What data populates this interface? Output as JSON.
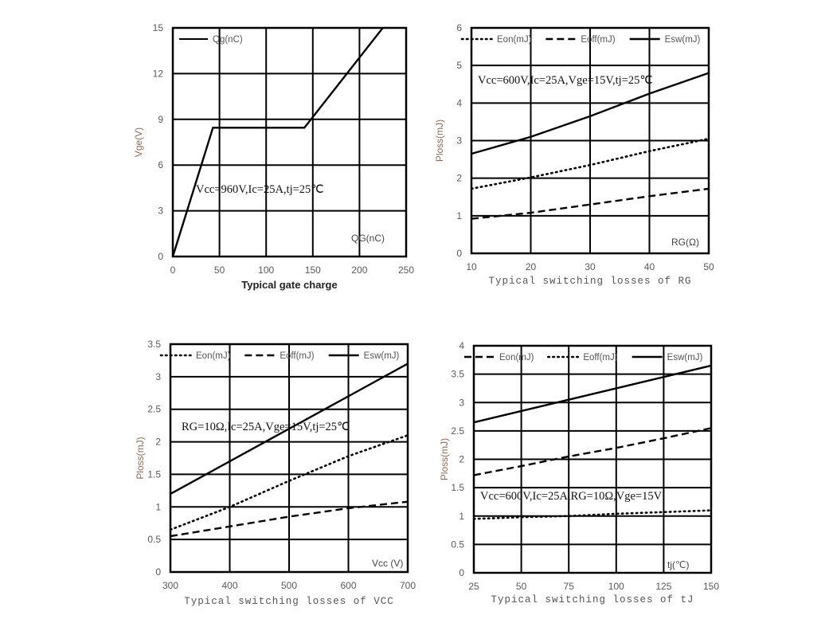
{
  "chart_data": [
    {
      "type": "line",
      "title": "Typical gate charge",
      "xlabel": "QG(nC)",
      "ylabel": "Vge(V)",
      "xlim": [
        0,
        250
      ],
      "ylim": [
        0,
        15
      ],
      "xticks": [
        "0",
        "50",
        "100",
        "150",
        "200",
        "250"
      ],
      "yticks": [
        "0",
        "3",
        "6",
        "9",
        "12",
        "15"
      ],
      "grid": true,
      "annotation": "Vcc=960V,Ic=25A,tj=25℃",
      "legend_position": "top-left",
      "series": [
        {
          "name": "Qg(nC)",
          "style": "solid",
          "x": [
            0,
            43,
            141,
            225
          ],
          "y": [
            0,
            8.45,
            8.45,
            15
          ]
        }
      ]
    },
    {
      "type": "line",
      "title": "Typical switching losses of RG",
      "xlabel": "RG(Ω)",
      "ylabel": "Ploss(mJ)",
      "xlim": [
        10,
        50
      ],
      "ylim": [
        0,
        6
      ],
      "xticks": [
        "10",
        "20",
        "30",
        "40",
        "50"
      ],
      "yticks": [
        "0",
        "1",
        "2",
        "3",
        "4",
        "5",
        "6"
      ],
      "grid": true,
      "annotation": "Vcc=600V,Ic=25A,Vge=15V,tj=25℃",
      "legend_position": "top",
      "series": [
        {
          "name": "Eon(mJ)",
          "style": "dotted",
          "x": [
            10,
            20,
            30,
            40,
            50
          ],
          "y": [
            1.72,
            2.02,
            2.35,
            2.72,
            3.05
          ]
        },
        {
          "name": "Eoff(mJ)",
          "style": "dashed",
          "x": [
            10,
            20,
            30,
            40,
            50
          ],
          "y": [
            0.92,
            1.08,
            1.3,
            1.52,
            1.72
          ]
        },
        {
          "name": "Esw(mJ)",
          "style": "solid",
          "x": [
            10,
            20,
            30,
            40,
            50
          ],
          "y": [
            2.65,
            3.1,
            3.65,
            4.25,
            4.8
          ]
        }
      ]
    },
    {
      "type": "line",
      "title": "Typical switching losses of VCC",
      "xlabel": "Vcc (V)",
      "ylabel": "Ploss(mJ)",
      "xlim": [
        300,
        700
      ],
      "ylim": [
        0,
        3.5
      ],
      "xticks": [
        "300",
        "400",
        "500",
        "600",
        "700"
      ],
      "yticks": [
        "0",
        "0.5",
        "1",
        "1.5",
        "2",
        "2.5",
        "3",
        "3.5"
      ],
      "grid": true,
      "annotation": "RG=10Ω,Ic=25A,Vge=15V,tj=25℃",
      "legend_position": "top",
      "series": [
        {
          "name": "Eon(mJ)",
          "style": "dotted",
          "x": [
            300,
            400,
            500,
            600,
            700
          ],
          "y": [
            0.65,
            1.0,
            1.4,
            1.78,
            2.1
          ]
        },
        {
          "name": "Eoff(mJ)",
          "style": "dashed",
          "x": [
            300,
            400,
            500,
            600,
            700
          ],
          "y": [
            0.55,
            0.7,
            0.85,
            0.98,
            1.08
          ]
        },
        {
          "name": "Esw(mJ)",
          "style": "solid",
          "x": [
            300,
            400,
            500,
            600,
            700
          ],
          "y": [
            1.2,
            1.7,
            2.2,
            2.7,
            3.2
          ]
        }
      ]
    },
    {
      "type": "line",
      "title": "Typical switching losses of tJ",
      "xlabel": "tj(℃)",
      "ylabel": "Ploss(mJ)",
      "xlim": [
        25,
        150
      ],
      "ylim": [
        0,
        4
      ],
      "xticks": [
        "25",
        "50",
        "75",
        "100",
        "125",
        "150"
      ],
      "yticks": [
        "0",
        "0.5",
        "1",
        "1.5",
        "2",
        "2.5",
        "3",
        "3.5",
        "4"
      ],
      "grid": true,
      "annotation": "Vcc=600V,Ic=25A,RG=10Ω,Vge=15V",
      "legend_position": "top",
      "series": [
        {
          "name": "Eon(mJ)",
          "style": "dashed",
          "x": [
            25,
            50,
            75,
            100,
            125,
            150
          ],
          "y": [
            1.72,
            1.88,
            2.05,
            2.2,
            2.37,
            2.55
          ]
        },
        {
          "name": "Eoff(mJ)",
          "style": "dotted",
          "x": [
            25,
            50,
            75,
            100,
            125,
            150
          ],
          "y": [
            0.95,
            0.98,
            1.0,
            1.04,
            1.07,
            1.1
          ]
        },
        {
          "name": "Esw(mJ)",
          "style": "solid",
          "x": [
            25,
            50,
            75,
            100,
            125,
            150
          ],
          "y": [
            2.65,
            2.85,
            3.05,
            3.25,
            3.45,
            3.65
          ]
        }
      ]
    }
  ]
}
